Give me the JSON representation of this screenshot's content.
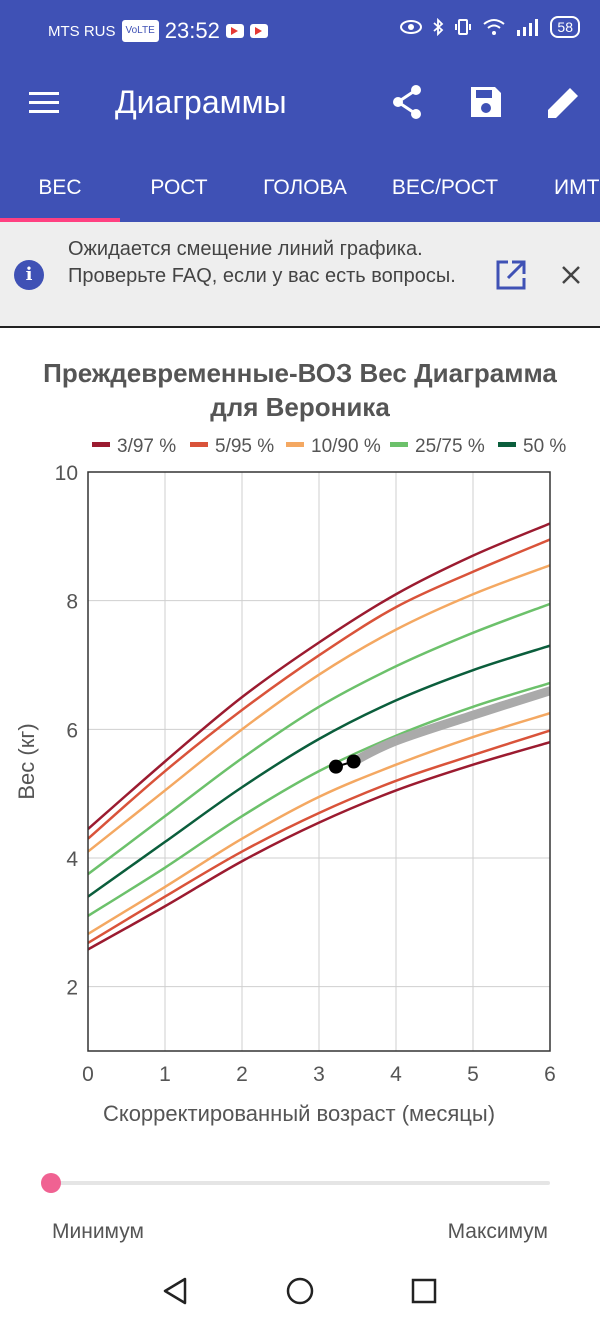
{
  "status_bar": {
    "carrier": "MTS RUS",
    "volte": "VoLTE",
    "time": "23:52",
    "battery": "58"
  },
  "toolbar": {
    "title": "Диаграммы",
    "icons": [
      "menu-icon",
      "share-icon",
      "save-icon",
      "edit-icon"
    ]
  },
  "tabs": [
    {
      "label": "ВЕС",
      "selected": true
    },
    {
      "label": "РОСТ",
      "selected": false
    },
    {
      "label": "ГОЛОВА",
      "selected": false
    },
    {
      "label": "ВЕС/РОСТ",
      "selected": false
    },
    {
      "label": "ИМТ",
      "selected": false
    }
  ],
  "banner": {
    "text": "Ожидается смещение линий графика. Проверьте FAQ, если у вас есть вопросы."
  },
  "chart_title": {
    "line1": "Преждевременные-ВОЗ Вес Диаграмма",
    "line2": "для Вероника"
  },
  "chart_data": {
    "type": "line",
    "xlabel": "Скорректированный возраст (месяцы)",
    "ylabel": "Вес (кг)",
    "xlim": [
      0,
      6
    ],
    "ylim": [
      1,
      10
    ],
    "x_ticks": [
      0,
      1,
      2,
      3,
      4,
      5,
      6
    ],
    "y_ticks": [
      2,
      4,
      6,
      8,
      10
    ],
    "grid": true,
    "legend_position": "top",
    "x": [
      0,
      1,
      2,
      3,
      4,
      5,
      6
    ],
    "series": [
      {
        "name": "3/97 %",
        "color": "#9b1b30",
        "lower": [
          2.58,
          3.25,
          3.95,
          4.55,
          5.05,
          5.45,
          5.8
        ],
        "upper": [
          4.45,
          5.5,
          6.5,
          7.35,
          8.1,
          8.7,
          9.2
        ]
      },
      {
        "name": "5/95 %",
        "color": "#d9533a",
        "lower": [
          2.68,
          3.4,
          4.1,
          4.7,
          5.2,
          5.6,
          5.98
        ],
        "upper": [
          4.3,
          5.35,
          6.3,
          7.15,
          7.9,
          8.45,
          8.95
        ]
      },
      {
        "name": "10/90 %",
        "color": "#f4a862",
        "lower": [
          2.82,
          3.55,
          4.3,
          4.95,
          5.45,
          5.88,
          6.25
        ],
        "upper": [
          4.1,
          5.05,
          6.0,
          6.85,
          7.55,
          8.1,
          8.55
        ]
      },
      {
        "name": "25/75 %",
        "color": "#6cc16b",
        "lower": [
          3.1,
          3.85,
          4.65,
          5.35,
          5.9,
          6.35,
          6.72
        ],
        "upper": [
          3.75,
          4.65,
          5.55,
          6.35,
          6.98,
          7.5,
          7.95
        ]
      },
      {
        "name": "50 %",
        "color": "#0b5e3c",
        "values": [
          3.4,
          4.25,
          5.1,
          5.85,
          6.45,
          6.92,
          7.3
        ]
      }
    ],
    "patient_points": [
      {
        "x": 3.22,
        "y": 5.42
      },
      {
        "x": 3.45,
        "y": 5.5
      }
    ],
    "patient_trend": {
      "color": "#aaaaaa",
      "x": [
        3.45,
        4.0,
        5.0,
        6.0
      ],
      "y": [
        5.5,
        5.82,
        6.22,
        6.6
      ]
    }
  },
  "slider": {
    "min_label": "Минимум",
    "max_label": "Максимум",
    "value": 0
  },
  "colors": {
    "primary": "#3f51b5",
    "accent": "#ff4081"
  },
  "navbar": {
    "icons": [
      "back-icon",
      "home-icon",
      "recents-icon"
    ]
  }
}
